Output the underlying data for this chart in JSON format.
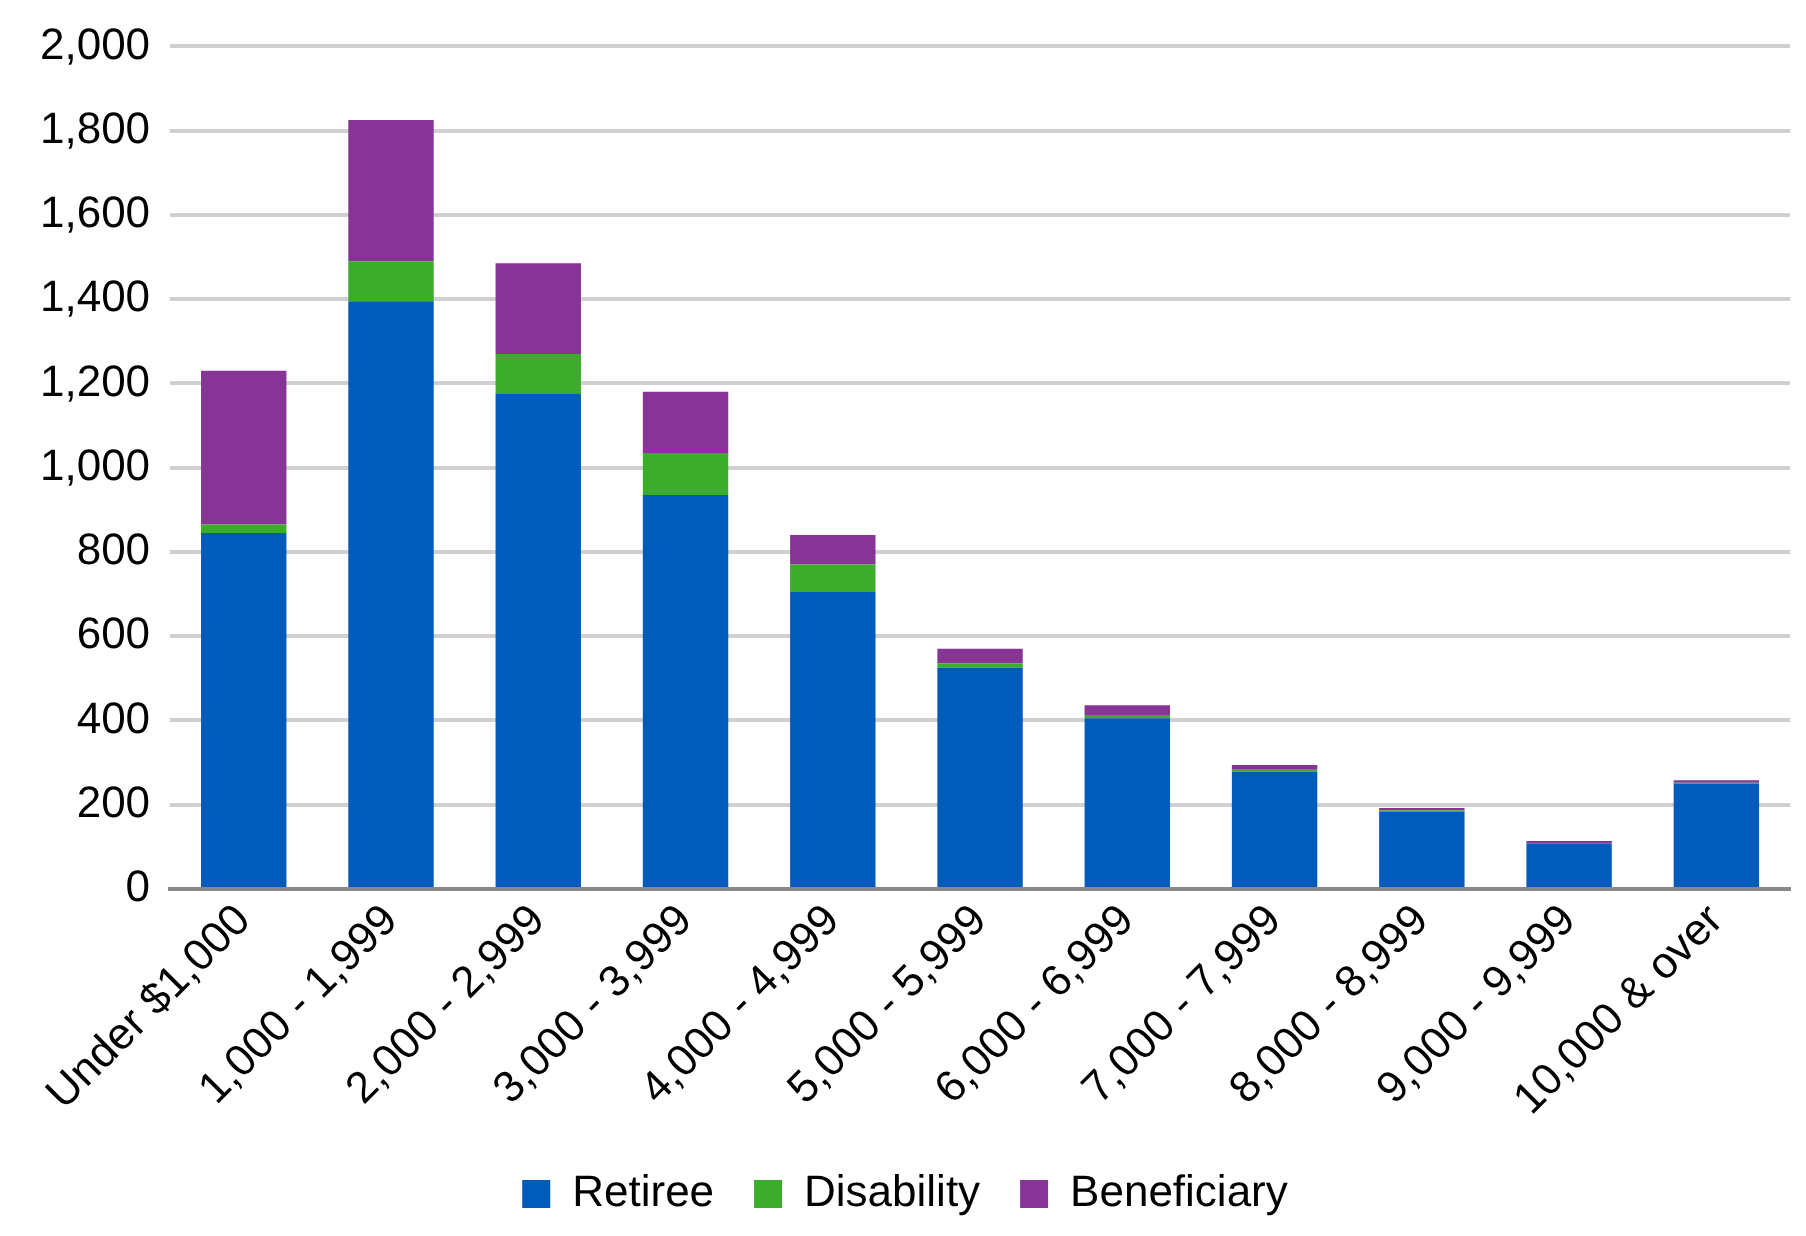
{
  "chart_data": {
    "type": "bar",
    "stacked": true,
    "categories": [
      "Under $1,000",
      "1,000 - 1,999",
      "2,000 - 2,999",
      "3,000 - 3,999",
      "4,000 - 4,999",
      "5,000 - 5,999",
      "6,000 - 6,999",
      "7,000 - 7,999",
      "8,000 - 8,999",
      "9,000 - 9,999",
      "10,000 & over"
    ],
    "series": [
      {
        "name": "Retiree",
        "color": "#005bbb",
        "values": [
          845,
          1395,
          1175,
          935,
          705,
          525,
          405,
          278,
          184,
          108,
          250
        ]
      },
      {
        "name": "Disability",
        "color": "#3cac2c",
        "values": [
          20,
          95,
          95,
          100,
          65,
          10,
          8,
          5,
          3,
          null,
          2
        ]
      },
      {
        "name": "Beneficiary",
        "color": "#863596",
        "values": [
          365,
          335,
          215,
          145,
          70,
          35,
          23,
          11,
          5,
          6,
          6
        ]
      }
    ],
    "ylim": [
      0,
      2000
    ],
    "yticks": [
      0,
      200,
      400,
      600,
      800,
      {
        "value": 1000,
        "label": "1,000"
      },
      {
        "value": 1200,
        "label": "1,200"
      },
      {
        "value": 1400,
        "label": "1,400"
      },
      {
        "value": 1600,
        "label": "1,600"
      },
      {
        "value": 1800,
        "label": "1,800"
      },
      {
        "value": 2000,
        "label": "2,000"
      }
    ],
    "grid": "y",
    "legend": "bottom"
  }
}
